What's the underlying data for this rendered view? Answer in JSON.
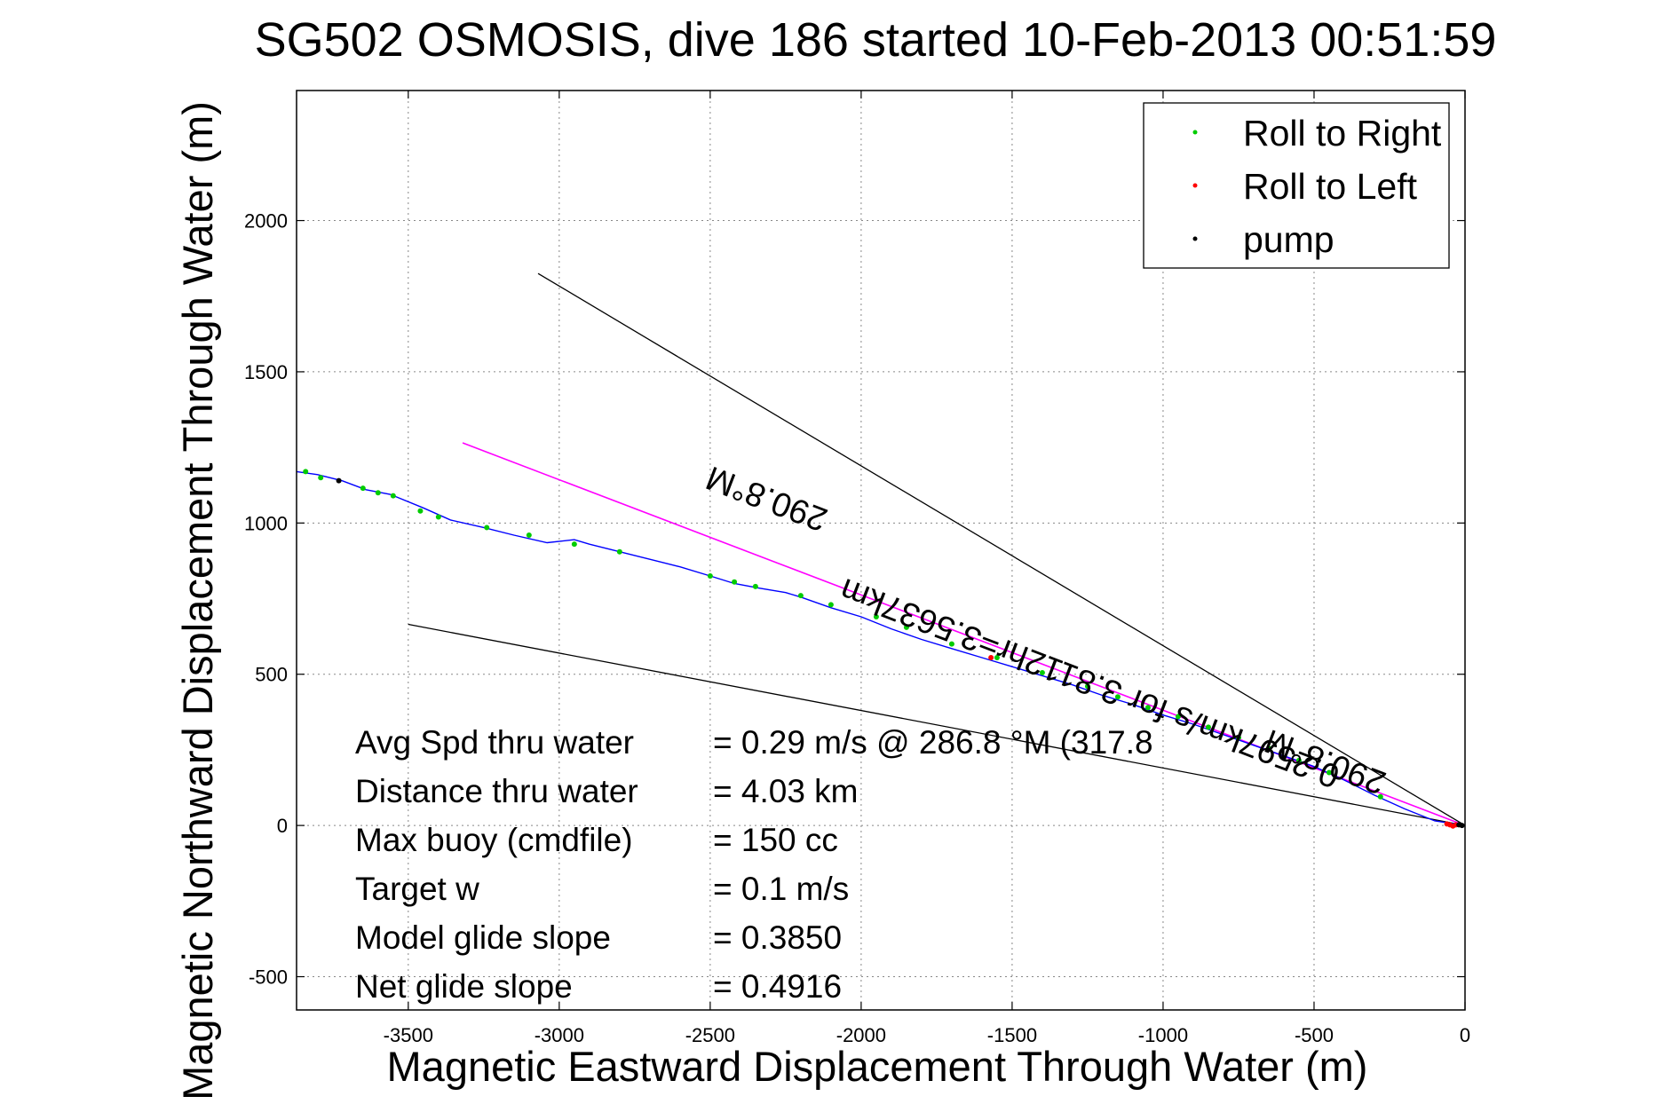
{
  "chart_data": {
    "type": "line",
    "title": "SG502 OSMOSIS, dive 186 started 10-Feb-2013 00:51:59",
    "xlabel": "Magnetic Eastward Displacement Through Water (m)",
    "ylabel": "Magnetic Northward Displacement Through Water (m)",
    "xlim": [
      -3870,
      0
    ],
    "ylim": [
      -610,
      2430
    ],
    "xticks": [
      -3500,
      -3000,
      -2500,
      -2000,
      -1500,
      -1000,
      -500,
      0
    ],
    "yticks": [
      -500,
      0,
      500,
      1000,
      1500,
      2000
    ],
    "grid": true,
    "legend_position": "top-right",
    "legend": [
      "Roll to Right",
      "Roll to Left",
      "pump"
    ],
    "colors": {
      "track": "#0000ff",
      "roll_right": "#00cc00",
      "roll_left": "#ff0000",
      "pump": "#000000",
      "heading_line": "#ff00ff",
      "guide_line": "#000000",
      "grid": "#888888"
    },
    "track": {
      "x": [
        -3870,
        -3800,
        -3720,
        -3640,
        -3560,
        -3450,
        -3360,
        -3250,
        -3150,
        -3040,
        -2950,
        -2900,
        -2800,
        -2700,
        -2600,
        -2500,
        -2420,
        -2340,
        -2250,
        -2200,
        -2100,
        -2000,
        -1900,
        -1800,
        -1700,
        -1600,
        -1500,
        -1400,
        -1300,
        -1200,
        -1100,
        -1000,
        -900,
        -800,
        -700,
        -600,
        -500,
        -400,
        -300,
        -200,
        -100,
        0
      ],
      "y": [
        1170,
        1160,
        1140,
        1110,
        1095,
        1050,
        1010,
        985,
        960,
        935,
        945,
        930,
        905,
        880,
        855,
        825,
        800,
        785,
        770,
        755,
        720,
        690,
        650,
        615,
        585,
        555,
        525,
        495,
        465,
        430,
        400,
        365,
        335,
        300,
        265,
        230,
        195,
        150,
        100,
        55,
        15,
        0
      ]
    },
    "series": [
      {
        "name": "Roll to Right",
        "x": [
          -3840,
          -3790,
          -3650,
          -3600,
          -3550,
          -3460,
          -3400,
          -3240,
          -3100,
          -2950,
          -2800,
          -2500,
          -2420,
          -2350,
          -2200,
          -2100,
          -1950,
          -1850,
          -1700,
          -1550,
          -1400,
          -1250,
          -1150,
          -1050,
          -950,
          -850,
          -750,
          -650,
          -550,
          -450,
          -280
        ],
        "y": [
          1170,
          1150,
          1115,
          1100,
          1090,
          1040,
          1020,
          985,
          960,
          930,
          905,
          825,
          805,
          790,
          760,
          730,
          690,
          655,
          600,
          555,
          505,
          460,
          425,
          390,
          360,
          325,
          290,
          255,
          215,
          175,
          95
        ]
      },
      {
        "name": "Roll to Left",
        "x": [
          -1570,
          -60,
          -50,
          -40,
          -30
        ],
        "y": [
          555,
          5,
          2,
          -2,
          2
        ]
      },
      {
        "name": "pump",
        "x": [
          -3730,
          -20,
          -10
        ],
        "y": [
          1140,
          2,
          0
        ]
      }
    ],
    "heading_line": {
      "x": [
        -3320,
        0
      ],
      "y": [
        1265,
        0
      ]
    },
    "guide_lines": [
      {
        "x": [
          -3070,
          0
        ],
        "y": [
          1825,
          0
        ]
      },
      {
        "x": [
          -3500,
          0
        ],
        "y": [
          665,
          0
        ]
      }
    ],
    "line_labels": [
      {
        "text": "290.8°M",
        "x": -2300,
        "y": 1115
      },
      {
        "text": "0.2597km/s for 3.8112hr=3.5637km",
        "x": -1230,
        "y": 505
      },
      {
        "text": "290.8°M",
        "x": -450,
        "y": 245
      }
    ],
    "annotations": [
      {
        "label": "Avg Spd thru water",
        "value": "=  0.29 m/s @ 286.8  °M (317.8"
      },
      {
        "label": "Distance thru water",
        "value": "=  4.03 km"
      },
      {
        "label": "Max buoy (cmdfile)",
        "value": "= 150 cc"
      },
      {
        "label": "Target w",
        "value": "= 0.1 m/s"
      },
      {
        "label": "Model glide slope",
        "value": "= 0.3850"
      },
      {
        "label": "Net glide slope",
        "value": "= 0.4916"
      }
    ]
  }
}
